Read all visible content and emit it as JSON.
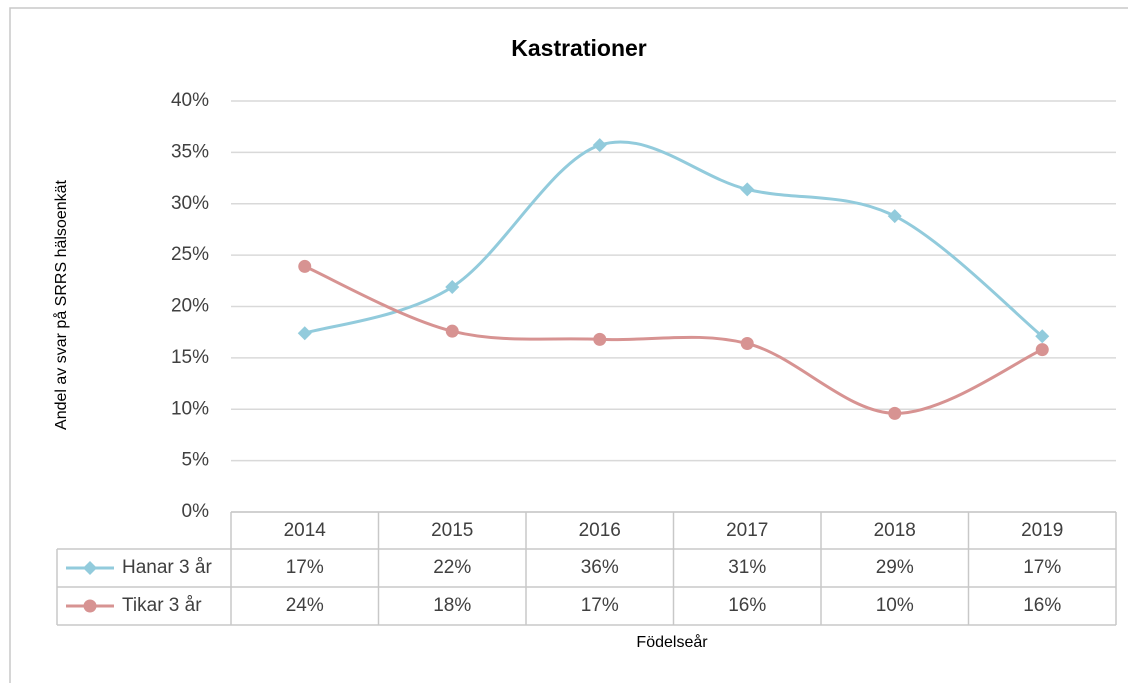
{
  "chart_data": {
    "type": "line",
    "title": "Kastrationer",
    "y_label": "Andel av svar på SRRS hälsoenkät",
    "x_label": "Födelseår",
    "categories": [
      "2014",
      "2015",
      "2016",
      "2017",
      "2018",
      "2019"
    ],
    "series": [
      {
        "name": "Hanar 3 år",
        "color": "#92cbdc",
        "marker": "diamond",
        "values": [
          17.4,
          21.9,
          35.7,
          31.4,
          28.8,
          17.1
        ],
        "value_labels": [
          "17%",
          "22%",
          "36%",
          "31%",
          "29%",
          "17%"
        ]
      },
      {
        "name": "Tikar 3 år",
        "color": "#d79392",
        "marker": "circle",
        "values": [
          23.9,
          17.6,
          16.8,
          16.4,
          9.6,
          15.8
        ],
        "value_labels": [
          "24%",
          "18%",
          "17%",
          "16%",
          "10%",
          "16%"
        ]
      }
    ],
    "ylim": [
      0,
      40
    ],
    "yticks": [
      {
        "value": 0,
        "label": "0%"
      },
      {
        "value": 5,
        "label": "5%"
      },
      {
        "value": 10,
        "label": "10%"
      },
      {
        "value": 15,
        "label": "15%"
      },
      {
        "value": 20,
        "label": "20%"
      },
      {
        "value": 25,
        "label": "25%"
      },
      {
        "value": 30,
        "label": "30%"
      },
      {
        "value": 35,
        "label": "35%"
      },
      {
        "value": 40,
        "label": "40%"
      }
    ],
    "grid": true,
    "smooth": true,
    "data_table": true
  }
}
